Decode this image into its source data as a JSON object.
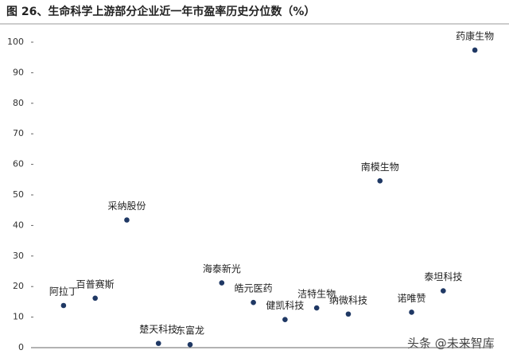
{
  "chart_data": {
    "type": "dot",
    "title": "图 26、生命科学上游部分企业近一年市盈率历史分位数（%）",
    "watermark": "头条 @未来智库",
    "categories": [
      "阿拉丁",
      "百普赛斯",
      "采纳股份",
      "楚天科技",
      "东富龙",
      "海泰新光",
      "皓元医药",
      "健凯科技",
      "洁特生物",
      "纳微科技",
      "南模生物",
      "诺唯赞",
      "泰坦科技",
      "药康生物"
    ],
    "values": [
      13.8,
      16.2,
      41.8,
      1.4,
      1.0,
      21.2,
      14.8,
      9.2,
      13.0,
      11.0,
      54.6,
      11.6,
      18.6,
      97.4
    ],
    "color": "#1f3864",
    "ylim": [
      0,
      100
    ],
    "yticks": [
      0,
      10,
      20,
      30,
      40,
      50,
      60,
      70,
      80,
      90,
      100
    ],
    "grid": false
  }
}
